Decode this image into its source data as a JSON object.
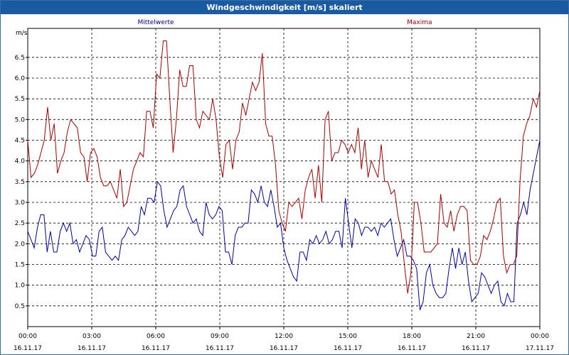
{
  "window": {
    "title": "Windgeschwindigkeit [m/s] skaliert"
  },
  "chart_data": {
    "type": "line",
    "title": "Windgeschwindigkeit [m/s] skaliert",
    "ylabel": "m/s",
    "ylim": [
      0,
      7.2
    ],
    "xlim": [
      0,
      24
    ],
    "grid": true,
    "legend_placement": "top",
    "y_ticks": [
      "0.5",
      "1.0",
      "1.5",
      "2.0",
      "2.5",
      "3.0",
      "3.5",
      "4.0",
      "4.5",
      "5.0",
      "5.5",
      "6.0",
      "6.5"
    ],
    "x_ticks": [
      {
        "time": "00:00",
        "date": "16.11.17"
      },
      {
        "time": "03:00",
        "date": "16.11.17"
      },
      {
        "time": "06:00",
        "date": "16.11.17"
      },
      {
        "time": "09:00",
        "date": "16.11.17"
      },
      {
        "time": "12:00",
        "date": "16.11.17"
      },
      {
        "time": "15:00",
        "date": "16.11.17"
      },
      {
        "time": "18:00",
        "date": "16.11.17"
      },
      {
        "time": "21:00",
        "date": "16.11.17"
      },
      {
        "time": "00:00",
        "date": "17.11.17"
      }
    ],
    "series": [
      {
        "name": "Mittelwerte",
        "color": "#0000aa",
        "values": [
          2.3,
          2.1,
          1.9,
          2.4,
          2.7,
          2.7,
          1.8,
          2.3,
          1.8,
          1.8,
          2.3,
          2.5,
          2.3,
          2.5,
          2.0,
          2.1,
          1.8,
          2.0,
          2.2,
          2.1,
          1.7,
          1.7,
          2.3,
          2.4,
          1.8,
          1.7,
          1.6,
          1.7,
          1.6,
          2.1,
          2.2,
          2.4,
          2.3,
          2.2,
          2.3,
          2.9,
          2.7,
          3.1,
          3.1,
          3.0,
          3.5,
          3.4,
          2.8,
          2.4,
          2.6,
          2.8,
          2.9,
          3.3,
          3.4,
          2.9,
          2.7,
          2.5,
          2.6,
          2.3,
          2.2,
          3.0,
          2.7,
          2.6,
          2.7,
          2.9,
          2.8,
          1.8,
          1.8,
          1.5,
          2.2,
          2.4,
          2.4,
          2.5,
          2.5,
          3.3,
          3.2,
          3.0,
          3.4,
          3.0,
          2.9,
          3.3,
          2.9,
          2.4,
          2.5,
          1.9,
          1.6,
          1.4,
          1.2,
          1.1,
          1.8,
          1.8,
          1.6,
          2.1,
          2.0,
          2.2,
          2.0,
          2.1,
          2.3,
          2.0,
          2.1,
          2.3,
          2.3,
          1.9,
          3.1,
          2.5,
          1.9,
          2.6,
          2.5,
          2.2,
          2.4,
          2.4,
          2.3,
          2.4,
          2.2,
          2.5,
          2.4,
          2.5,
          2.6,
          2.1,
          1.7,
          1.9,
          2.1,
          1.7,
          1.7,
          1.6,
          1.4,
          0.4,
          0.6,
          1.3,
          1.5,
          1.0,
          0.8,
          0.7,
          0.7,
          0.8,
          1.4,
          1.9,
          1.4,
          1.9,
          1.5,
          1.8,
          1.1,
          0.6,
          0.7,
          0.8,
          1.3,
          1.2,
          1.0,
          0.8,
          1.0,
          1.1,
          0.6,
          0.5,
          0.8,
          0.6,
          0.6,
          2.5,
          2.7,
          3.0,
          2.7,
          3.3,
          3.7,
          4.1,
          4.5
        ]
      },
      {
        "name": "Maxima",
        "color": "#aa0000",
        "values": [
          4.5,
          3.6,
          3.7,
          3.9,
          4.2,
          4.5,
          5.3,
          4.5,
          4.9,
          3.7,
          4.0,
          4.2,
          4.7,
          5.0,
          4.9,
          4.8,
          4.2,
          4.1,
          3.5,
          4.2,
          4.3,
          4.1,
          3.6,
          3.4,
          3.4,
          3.5,
          3.3,
          3.1,
          3.8,
          2.9,
          3.0,
          3.4,
          3.8,
          4.0,
          4.2,
          4.1,
          5.2,
          5.2,
          4.8,
          6.1,
          6.0,
          6.9,
          6.9,
          5.5,
          4.2,
          5.0,
          6.2,
          5.8,
          5.8,
          6.3,
          6.3,
          5.0,
          4.8,
          5.2,
          5.1,
          5.0,
          5.5,
          5.0,
          4.1,
          3.6,
          4.4,
          4.5,
          3.8,
          4.5,
          4.7,
          5.4,
          5.1,
          5.5,
          5.9,
          5.7,
          5.9,
          6.6,
          4.9,
          4.6,
          4.6,
          3.9,
          2.8,
          2.5,
          2.3,
          3.0,
          2.9,
          3.0,
          3.1,
          2.6,
          3.3,
          3.6,
          3.8,
          3.1,
          3.9,
          3.0,
          5.0,
          5.2,
          4.0,
          4.2,
          4.2,
          4.5,
          4.4,
          4.2,
          4.4,
          4.2,
          4.8,
          3.8,
          4.5,
          3.6,
          4.0,
          3.8,
          3.6,
          4.4,
          3.5,
          3.5,
          3.2,
          3.3,
          2.7,
          2.3,
          1.5,
          0.8,
          1.3,
          3.0,
          3.0,
          2.5,
          1.8,
          1.8,
          1.8,
          1.9,
          2.0,
          3.2,
          2.5,
          2.4,
          2.8,
          2.3,
          2.7,
          2.9,
          2.9,
          2.8,
          1.6,
          1.5,
          1.5,
          1.7,
          2.2,
          2.1,
          2.3,
          2.6,
          3.0,
          3.1,
          1.7,
          1.3,
          1.5,
          1.5,
          1.7,
          3.5,
          4.6,
          4.9,
          5.1,
          5.5,
          5.3,
          5.7
        ]
      }
    ]
  }
}
